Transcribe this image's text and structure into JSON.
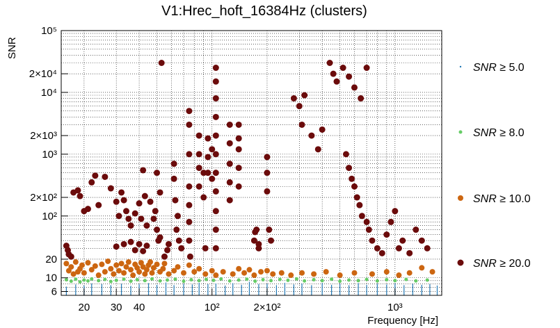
{
  "chart_data": {
    "type": "scatter",
    "title": "V1:Hrec_hoft_16384Hz (clusters)",
    "xlabel": "Frequency [Hz]",
    "ylabel": "SNR",
    "x_scale": "log",
    "y_scale": "log",
    "xlim": [
      15,
      1800
    ],
    "ylim": [
      5.2,
      100000
    ],
    "grid": true,
    "legend_position": "right",
    "x_ticks": [
      {
        "value": 20,
        "label": "20"
      },
      {
        "value": 30,
        "label": "30"
      },
      {
        "value": 40,
        "label": "40"
      },
      {
        "value": 100,
        "label": "10²"
      },
      {
        "value": 200,
        "label": "2×10²"
      },
      {
        "value": 1000,
        "label": "10³"
      }
    ],
    "y_ticks": [
      {
        "value": 6,
        "label": "6"
      },
      {
        "value": 10,
        "label": "10"
      },
      {
        "value": 20,
        "label": "20"
      },
      {
        "value": 100,
        "label": "10²"
      },
      {
        "value": 200,
        "label": "2×10²"
      },
      {
        "value": 1000,
        "label": "10³"
      },
      {
        "value": 2000,
        "label": "2×10³"
      },
      {
        "value": 10000,
        "label": "10⁴"
      },
      {
        "value": 20000,
        "label": "2×10⁴"
      },
      {
        "value": 100000,
        "label": "10⁵"
      }
    ],
    "legend": [
      {
        "label_var": "SNR",
        "label_rest": " ≥ 5.0"
      },
      {
        "label_var": "SNR",
        "label_rest": " ≥ 8.0"
      },
      {
        "label_var": "SNR",
        "label_rest": " ≥ 10.0"
      },
      {
        "label_var": "SNR",
        "label_rest": " ≥ 20.0"
      }
    ],
    "series": [
      {
        "threshold": 5.0,
        "color": "#1f77b4",
        "marker": "spike",
        "points": [
          [
            16,
            7.2
          ],
          [
            18,
            7.8
          ],
          [
            20,
            7.5
          ],
          [
            22,
            8.1
          ],
          [
            25,
            7.9
          ],
          [
            28,
            7.6
          ],
          [
            32,
            8.0
          ],
          [
            36,
            7.4
          ],
          [
            40,
            7.9
          ],
          [
            45,
            8.2
          ],
          [
            50,
            7.7
          ],
          [
            56,
            8.4
          ],
          [
            62,
            7.6
          ],
          [
            70,
            8.0
          ],
          [
            78,
            7.8
          ],
          [
            85,
            8.3
          ],
          [
            95,
            7.9
          ],
          [
            105,
            8.1
          ],
          [
            118,
            7.5
          ],
          [
            130,
            8.2
          ],
          [
            145,
            7.7
          ],
          [
            160,
            8.6
          ],
          [
            180,
            7.9
          ],
          [
            200,
            8.0
          ],
          [
            225,
            7.6
          ],
          [
            250,
            8.3
          ],
          [
            280,
            7.8
          ],
          [
            310,
            8.1
          ],
          [
            350,
            7.6
          ],
          [
            400,
            8.2
          ],
          [
            450,
            7.7
          ],
          [
            500,
            8.0
          ],
          [
            560,
            7.6
          ],
          [
            630,
            8.2
          ],
          [
            700,
            7.7
          ],
          [
            800,
            8.0
          ],
          [
            900,
            7.8
          ],
          [
            1000,
            8.1
          ],
          [
            1120,
            7.6
          ],
          [
            1250,
            8.0
          ],
          [
            1400,
            7.7
          ],
          [
            1550,
            7.9
          ],
          [
            1700,
            7.5
          ]
        ]
      },
      {
        "threshold": 8.0,
        "color": "#66cc66",
        "marker": "dot",
        "points": [
          [
            16,
            9.3
          ],
          [
            17,
            8.8
          ],
          [
            18,
            9.5
          ],
          [
            19,
            8.6
          ],
          [
            20,
            9.2
          ],
          [
            21,
            8.9
          ],
          [
            22,
            9.6
          ],
          [
            24,
            9.0
          ],
          [
            26,
            9.4
          ],
          [
            28,
            8.7
          ],
          [
            30,
            9.1
          ],
          [
            33,
            9.5
          ],
          [
            36,
            8.8
          ],
          [
            39,
            9.3
          ],
          [
            43,
            9.0
          ],
          [
            47,
            9.6
          ],
          [
            52,
            8.9
          ],
          [
            57,
            9.2
          ],
          [
            63,
            9.5
          ],
          [
            70,
            8.8
          ],
          [
            77,
            9.3
          ],
          [
            85,
            9.0
          ],
          [
            93,
            9.4
          ],
          [
            102,
            9.1
          ],
          [
            112,
            9.6
          ],
          [
            125,
            8.9
          ],
          [
            140,
            9.2
          ],
          [
            155,
            9.5
          ],
          [
            172,
            8.8
          ],
          [
            190,
            9.3
          ],
          [
            210,
            9.0
          ],
          [
            235,
            9.4
          ],
          [
            260,
            9.1
          ],
          [
            290,
            9.6
          ],
          [
            320,
            8.9
          ],
          [
            360,
            9.3
          ],
          [
            400,
            9.0
          ],
          [
            450,
            9.5
          ],
          [
            500,
            8.8
          ],
          [
            560,
            9.2
          ],
          [
            630,
            9.0
          ],
          [
            700,
            9.4
          ],
          [
            800,
            8.9
          ],
          [
            900,
            9.3
          ],
          [
            1000,
            9.0
          ],
          [
            1150,
            9.4
          ],
          [
            1300,
            8.9
          ],
          [
            1500,
            9.2
          ]
        ]
      },
      {
        "threshold": 10.0,
        "color": "#cc6611",
        "marker": "dot",
        "points": [
          [
            16,
            17
          ],
          [
            16.5,
            13
          ],
          [
            17,
            15
          ],
          [
            17.5,
            11.5
          ],
          [
            18,
            18
          ],
          [
            18.5,
            12.5
          ],
          [
            19,
            14
          ],
          [
            19.5,
            16
          ],
          [
            20,
            12
          ],
          [
            21,
            17.5
          ],
          [
            22,
            13.5
          ],
          [
            23,
            15.5
          ],
          [
            24,
            11
          ],
          [
            25,
            16.5
          ],
          [
            26,
            12.5
          ],
          [
            27,
            18.5
          ],
          [
            28,
            14
          ],
          [
            29,
            11.5
          ],
          [
            30,
            16
          ],
          [
            31,
            13
          ],
          [
            32,
            17
          ],
          [
            33,
            12
          ],
          [
            34,
            15
          ],
          [
            35,
            18
          ],
          [
            36,
            13.5
          ],
          [
            37,
            11
          ],
          [
            38,
            16.5
          ],
          [
            39,
            14.5
          ],
          [
            40,
            12.5
          ],
          [
            41,
            17.5
          ],
          [
            42,
            15
          ],
          [
            43,
            11.5
          ],
          [
            44,
            13.5
          ],
          [
            45,
            16
          ],
          [
            46,
            18
          ],
          [
            47,
            12
          ],
          [
            48,
            14.5
          ],
          [
            50,
            16.5
          ],
          [
            52,
            12.5
          ],
          [
            54,
            14
          ],
          [
            55,
            17
          ],
          [
            58,
            11.5
          ],
          [
            62,
            13
          ],
          [
            65,
            15
          ],
          [
            70,
            12
          ],
          [
            75,
            16
          ],
          [
            80,
            12.5
          ],
          [
            85,
            14
          ],
          [
            92,
            11.5
          ],
          [
            100,
            13
          ],
          [
            105,
            11
          ],
          [
            115,
            12.5
          ],
          [
            130,
            11.5
          ],
          [
            140,
            14
          ],
          [
            150,
            12
          ],
          [
            160,
            13.5
          ],
          [
            170,
            11
          ],
          [
            185,
            12.5
          ],
          [
            200,
            13
          ],
          [
            215,
            11.5
          ],
          [
            240,
            12
          ],
          [
            270,
            11
          ],
          [
            310,
            12
          ],
          [
            360,
            11.5
          ],
          [
            420,
            12.5
          ],
          [
            500,
            11
          ],
          [
            600,
            12
          ],
          [
            750,
            11.5
          ],
          [
            900,
            12.5
          ],
          [
            1050,
            11
          ],
          [
            1200,
            12
          ],
          [
            1400,
            14.5
          ],
          [
            1600,
            12.5
          ]
        ]
      },
      {
        "threshold": 20.0,
        "color": "#6b0b0b",
        "marker": "dot",
        "points": [
          [
            16,
            33
          ],
          [
            16.3,
            28
          ],
          [
            16.5,
            24
          ],
          [
            17,
            22
          ],
          [
            17.5,
            240
          ],
          [
            18.5,
            260
          ],
          [
            19,
            210
          ],
          [
            20,
            120
          ],
          [
            21,
            130
          ],
          [
            22,
            350
          ],
          [
            24,
            150
          ],
          [
            23,
            450
          ],
          [
            26,
            430
          ],
          [
            28,
            280
          ],
          [
            30,
            170
          ],
          [
            31,
            100
          ],
          [
            32,
            240
          ],
          [
            33,
            180
          ],
          [
            34,
            120
          ],
          [
            35,
            90
          ],
          [
            36,
            70
          ],
          [
            30,
            32
          ],
          [
            33,
            35
          ],
          [
            36,
            38
          ],
          [
            38,
            28
          ],
          [
            40,
            35
          ],
          [
            42,
            27
          ],
          [
            44,
            33
          ],
          [
            38,
            110
          ],
          [
            40,
            160
          ],
          [
            41,
            90
          ],
          [
            42,
            550
          ],
          [
            43,
            210
          ],
          [
            44,
            70
          ],
          [
            46,
            170
          ],
          [
            48,
            90
          ],
          [
            49,
            120
          ],
          [
            50,
            500
          ],
          [
            50,
            60
          ],
          [
            51,
            40
          ],
          [
            52,
            240
          ],
          [
            52,
            45
          ],
          [
            53,
            30000
          ],
          [
            55,
            22
          ],
          [
            57,
            28
          ],
          [
            58,
            35
          ],
          [
            62,
            700
          ],
          [
            62,
            400
          ],
          [
            63,
            180
          ],
          [
            64,
            60
          ],
          [
            65,
            100
          ],
          [
            66,
            40
          ],
          [
            68,
            30
          ],
          [
            75,
            5000
          ],
          [
            75,
            3000
          ],
          [
            75,
            1000
          ],
          [
            75,
            300
          ],
          [
            75,
            150
          ],
          [
            75,
            80
          ],
          [
            75,
            40
          ],
          [
            76,
            22
          ],
          [
            85,
            2000
          ],
          [
            85,
            1000
          ],
          [
            85,
            600
          ],
          [
            85,
            300
          ],
          [
            90,
            500
          ],
          [
            90,
            200
          ],
          [
            92,
            30
          ],
          [
            95,
            1800
          ],
          [
            95,
            900
          ],
          [
            95,
            500
          ],
          [
            100,
            1200
          ],
          [
            100,
            400
          ],
          [
            105,
            25000
          ],
          [
            105,
            15000
          ],
          [
            105,
            8000
          ],
          [
            105,
            4000
          ],
          [
            105,
            2000
          ],
          [
            105,
            1000
          ],
          [
            105,
            500
          ],
          [
            105,
            250
          ],
          [
            105,
            120
          ],
          [
            105,
            60
          ],
          [
            105,
            30
          ],
          [
            125,
            3000
          ],
          [
            125,
            1500
          ],
          [
            125,
            700
          ],
          [
            125,
            350
          ],
          [
            125,
            180
          ],
          [
            140,
            1200
          ],
          [
            140,
            600
          ],
          [
            140,
            300
          ],
          [
            140,
            3000
          ],
          [
            140,
            1800
          ],
          [
            170,
            40
          ],
          [
            172,
            55
          ],
          [
            175,
            60
          ],
          [
            180,
            30
          ],
          [
            180,
            35
          ],
          [
            200,
            900
          ],
          [
            200,
            500
          ],
          [
            200,
            250
          ],
          [
            205,
            60
          ],
          [
            210,
            40
          ],
          [
            280,
            8000
          ],
          [
            300,
            6000
          ],
          [
            310,
            3000
          ],
          [
            320,
            9000
          ],
          [
            350,
            2000
          ],
          [
            380,
            1200
          ],
          [
            400,
            2500
          ],
          [
            440,
            30000
          ],
          [
            460,
            20000
          ],
          [
            480,
            15000
          ],
          [
            520,
            25000
          ],
          [
            560,
            18000
          ],
          [
            600,
            12000
          ],
          [
            650,
            8000
          ],
          [
            700,
            25000
          ],
          [
            540,
            1000
          ],
          [
            560,
            600
          ],
          [
            580,
            400
          ],
          [
            600,
            300
          ],
          [
            620,
            200
          ],
          [
            640,
            150
          ],
          [
            660,
            100
          ],
          [
            700,
            80
          ],
          [
            720,
            60
          ],
          [
            750,
            40
          ],
          [
            800,
            30
          ],
          [
            850,
            25
          ],
          [
            900,
            50
          ],
          [
            950,
            80
          ],
          [
            1000,
            120
          ],
          [
            1050,
            30
          ],
          [
            1100,
            40
          ],
          [
            1200,
            25
          ],
          [
            1300,
            60
          ],
          [
            1400,
            40
          ],
          [
            1500,
            30
          ]
        ]
      }
    ]
  }
}
